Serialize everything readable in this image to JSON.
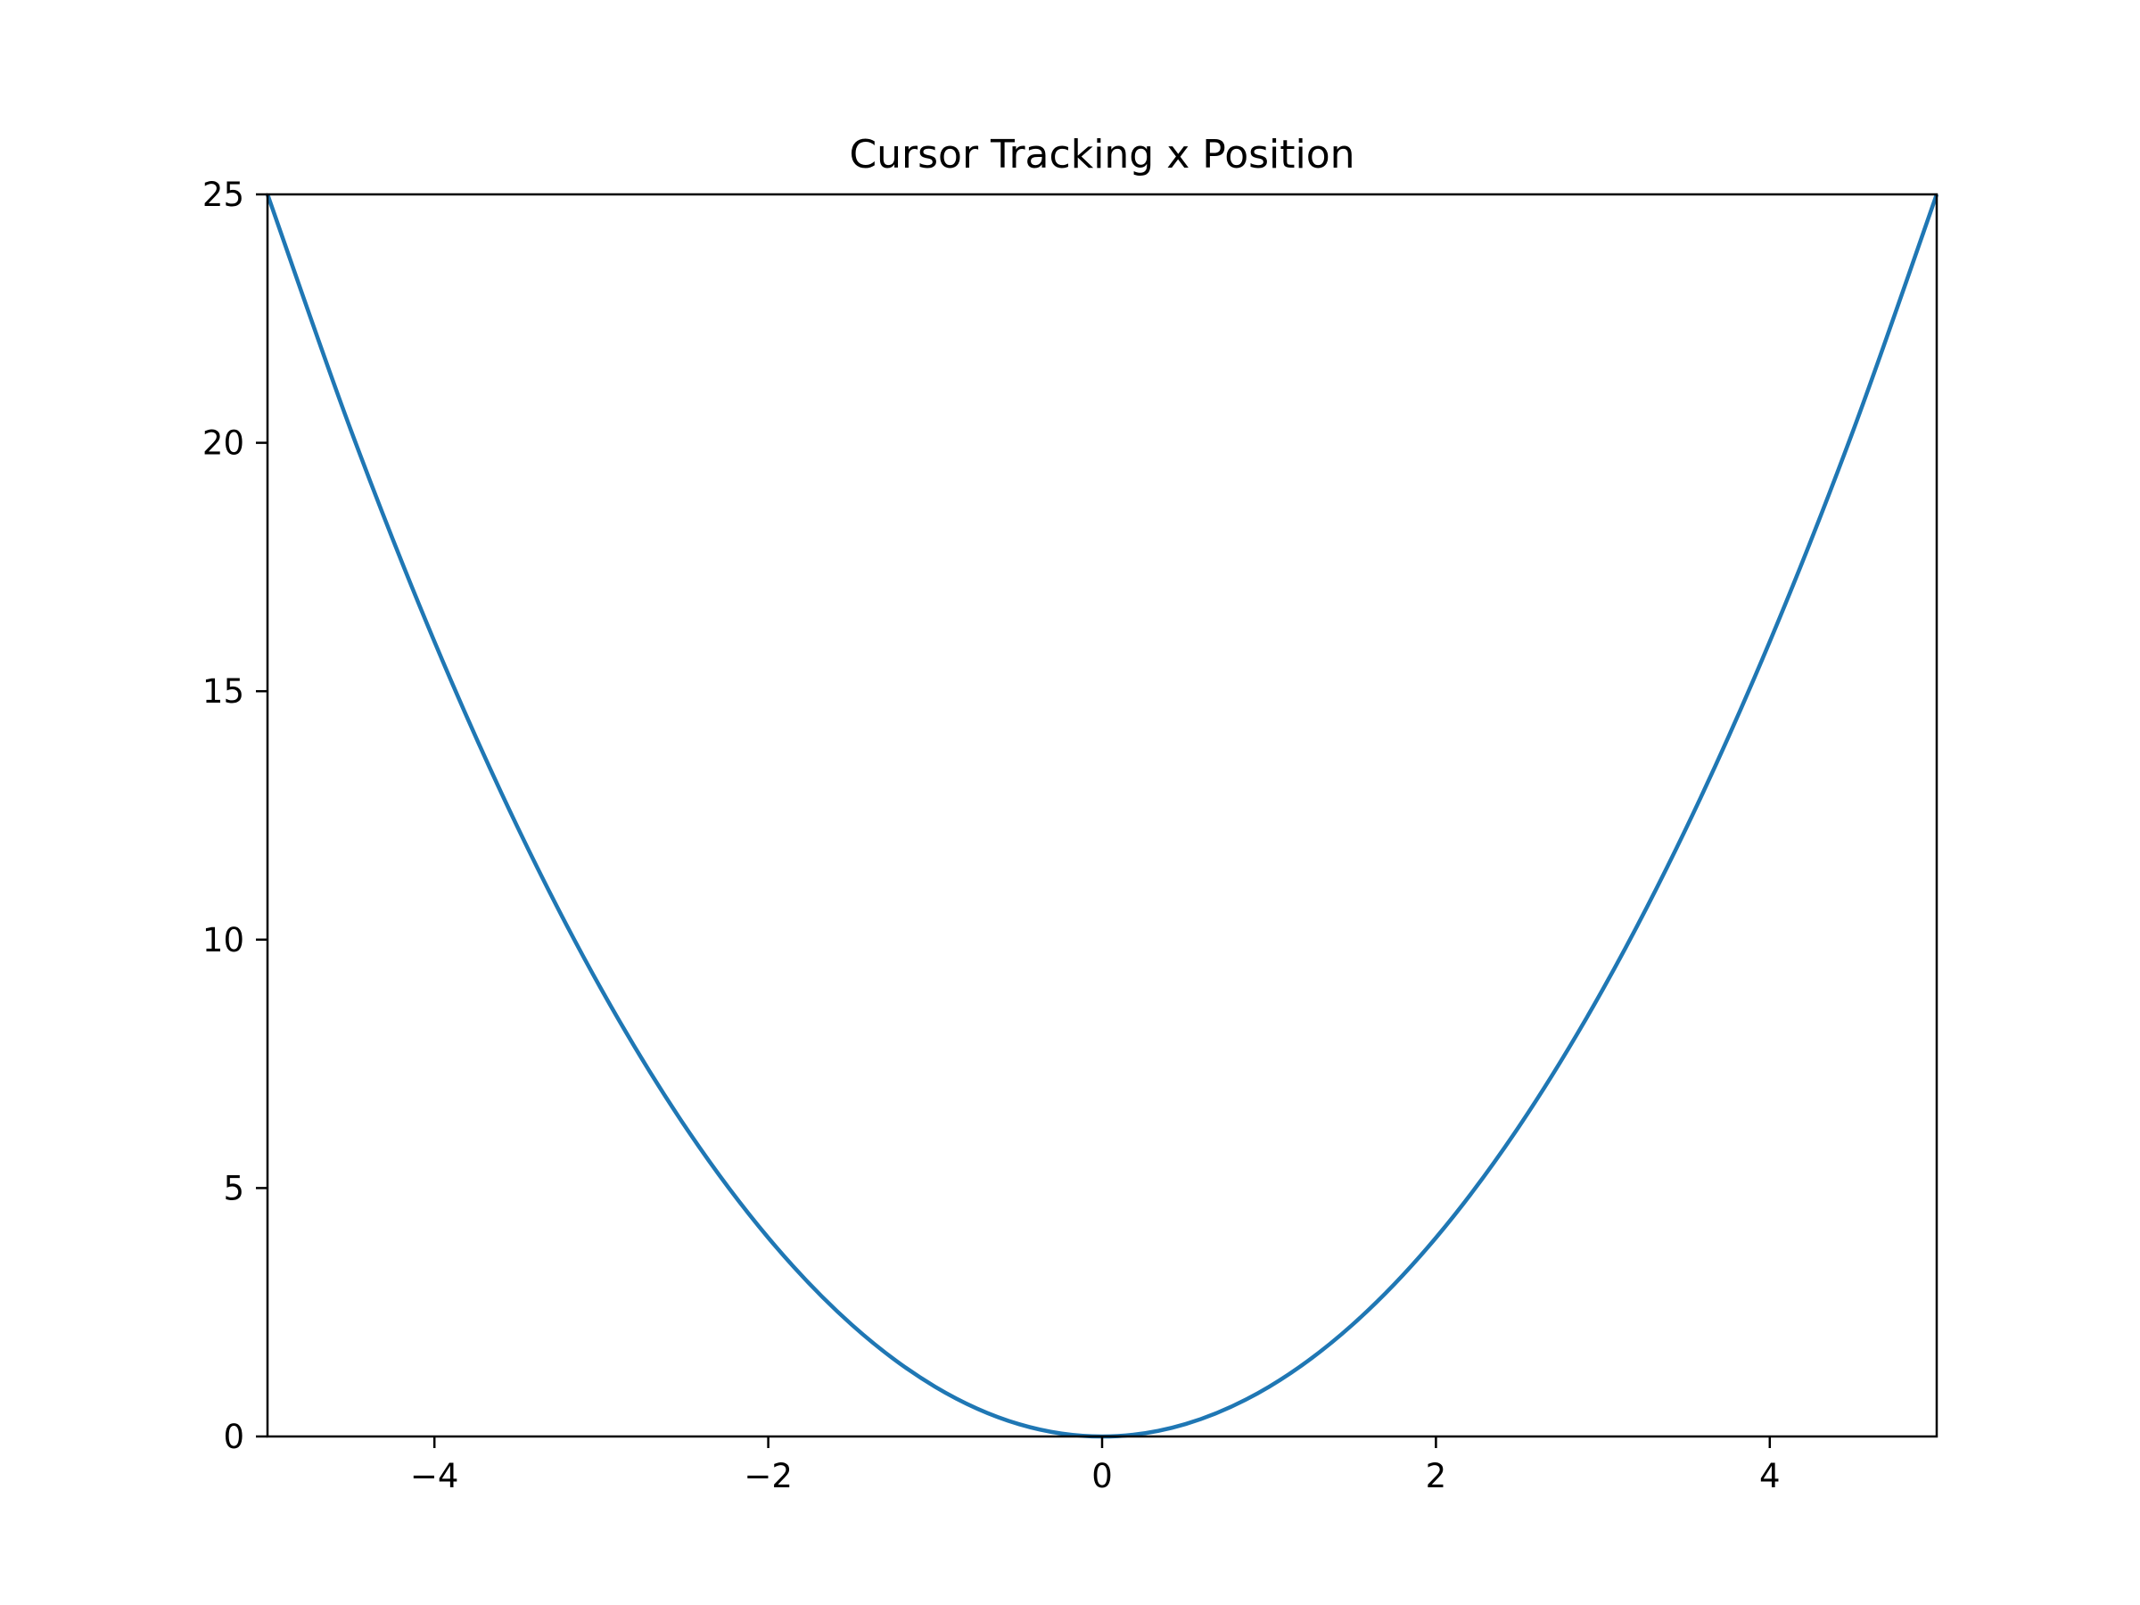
{
  "chart_data": {
    "type": "line",
    "title": "Cursor Tracking x Position",
    "xlabel": "",
    "ylabel": "",
    "xlim": [
      -5,
      5
    ],
    "ylim": [
      0,
      25
    ],
    "xticks": [
      -4,
      -2,
      0,
      2,
      4
    ],
    "xtick_labels": [
      "−4",
      "−2",
      "0",
      "2",
      "4"
    ],
    "yticks": [
      0,
      5,
      10,
      15,
      20,
      25
    ],
    "ytick_labels": [
      "0",
      "5",
      "10",
      "15",
      "20",
      "25"
    ],
    "grid": false,
    "legend": "none",
    "series": [
      {
        "color": "#1f77b4",
        "x": [
          -5,
          -4.5,
          -4,
          -3.5,
          -3,
          -2.5,
          -2,
          -1.5,
          -1,
          -0.5,
          0,
          0.5,
          1,
          1.5,
          2,
          2.5,
          3,
          3.5,
          4,
          4.5,
          5
        ],
        "y": [
          25,
          20.25,
          16,
          12.25,
          9,
          6.25,
          4,
          2.25,
          1,
          0.25,
          0,
          0.25,
          1,
          2.25,
          4,
          6.25,
          9,
          12.25,
          16,
          20.25,
          25
        ]
      }
    ]
  }
}
